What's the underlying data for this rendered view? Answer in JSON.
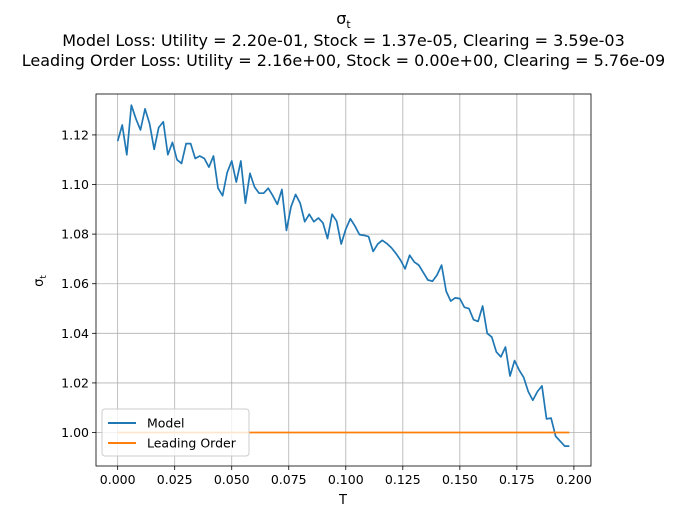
{
  "chart_data": {
    "type": "line",
    "title_symbol": "σ",
    "title_symbol_sub": "t",
    "subtitle_lines": [
      "Model Loss: Utility = 2.20e-01, Stock = 1.37e-05, Clearing = 3.59e-03",
      "Leading Order Loss: Utility = 2.16e+00, Stock = 0.00e+00, Clearing = 5.76e-09"
    ],
    "xlabel": "T",
    "ylabel_symbol": "σ",
    "ylabel_sub": "t",
    "xlim": [
      -0.0095,
      0.2075
    ],
    "ylim": [
      0.9865,
      1.1365
    ],
    "xticks": [
      0.0,
      0.025,
      0.05,
      0.075,
      0.1,
      0.125,
      0.15,
      0.175,
      0.2
    ],
    "xtick_labels": [
      "0.000",
      "0.025",
      "0.050",
      "0.075",
      "0.100",
      "0.125",
      "0.150",
      "0.175",
      "0.200"
    ],
    "yticks": [
      1.0,
      1.02,
      1.04,
      1.06,
      1.08,
      1.1,
      1.12
    ],
    "ytick_labels": [
      "1.00",
      "1.02",
      "1.04",
      "1.06",
      "1.08",
      "1.10",
      "1.12"
    ],
    "grid": true,
    "legend_position": "lower-left",
    "series": [
      {
        "name": "Model",
        "color": "#1f77b4",
        "x": [
          0.0,
          0.002,
          0.004,
          0.006,
          0.008,
          0.01,
          0.012,
          0.014,
          0.016,
          0.018,
          0.02,
          0.022,
          0.024,
          0.026,
          0.028,
          0.03,
          0.032,
          0.034,
          0.036,
          0.038,
          0.04,
          0.042,
          0.044,
          0.046,
          0.048,
          0.05,
          0.052,
          0.054,
          0.056,
          0.058,
          0.06,
          0.062,
          0.064,
          0.066,
          0.068,
          0.07,
          0.072,
          0.074,
          0.076,
          0.078,
          0.08,
          0.082,
          0.084,
          0.086,
          0.088,
          0.09,
          0.092,
          0.094,
          0.096,
          0.098,
          0.1,
          0.102,
          0.104,
          0.106,
          0.108,
          0.11,
          0.112,
          0.114,
          0.116,
          0.118,
          0.12,
          0.122,
          0.124,
          0.126,
          0.128,
          0.13,
          0.132,
          0.134,
          0.136,
          0.138,
          0.14,
          0.142,
          0.144,
          0.146,
          0.148,
          0.15,
          0.152,
          0.154,
          0.156,
          0.158,
          0.16,
          0.162,
          0.164,
          0.166,
          0.168,
          0.17,
          0.172,
          0.174,
          0.176,
          0.178,
          0.18,
          0.182,
          0.184,
          0.186,
          0.188,
          0.19,
          0.192,
          0.194,
          0.196,
          0.198
        ],
        "values": [
          1.1175,
          1.124,
          1.112,
          1.132,
          1.1265,
          1.122,
          1.1305,
          1.1245,
          1.1142,
          1.123,
          1.1253,
          1.112,
          1.117,
          1.11,
          1.1085,
          1.1165,
          1.1165,
          1.1105,
          1.1115,
          1.1105,
          1.107,
          1.1115,
          1.0985,
          1.0955,
          1.1048,
          1.1095,
          1.101,
          1.1095,
          1.0925,
          1.1045,
          1.099,
          1.0965,
          1.0965,
          1.0985,
          1.0955,
          1.092,
          1.098,
          1.0815,
          1.091,
          1.096,
          1.0925,
          1.085,
          1.088,
          1.085,
          1.0865,
          1.0845,
          1.0782,
          1.088,
          1.0852,
          1.076,
          1.082,
          1.0862,
          1.0833,
          1.0798,
          1.0795,
          1.079,
          1.073,
          1.076,
          1.0775,
          1.0762,
          1.0745,
          1.0722,
          1.0695,
          1.066,
          1.0715,
          1.0688,
          1.0675,
          1.0645,
          1.0615,
          1.061,
          1.0635,
          1.0675,
          1.057,
          1.053,
          1.0543,
          1.054,
          1.0505,
          1.05,
          1.0455,
          1.0448,
          1.051,
          1.04,
          1.0385,
          1.0325,
          1.0305,
          1.0345,
          1.0228,
          1.029,
          1.0252,
          1.0222,
          1.0165,
          1.013,
          1.0165,
          1.0188,
          1.0055,
          1.0058,
          0.9985,
          0.9965,
          0.9945,
          0.9945
        ]
      },
      {
        "name": "Leading Order",
        "color": "#ff7f0e",
        "x": [
          0.0,
          0.198
        ],
        "values": [
          1.0,
          1.0
        ]
      }
    ]
  }
}
